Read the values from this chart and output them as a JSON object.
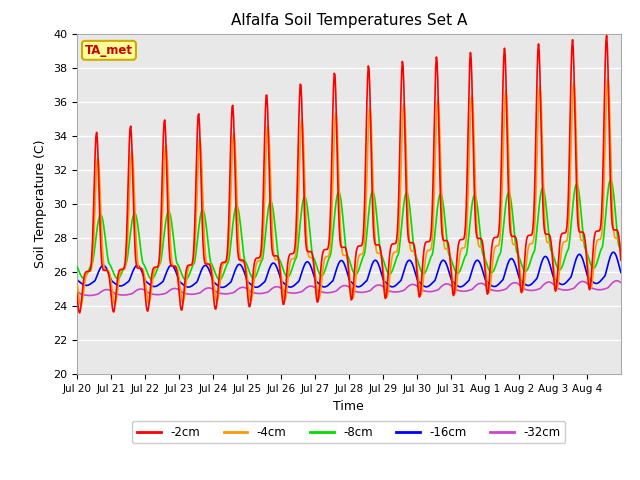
{
  "title": "Alfalfa Soil Temperatures Set A",
  "xlabel": "Time",
  "ylabel": "Soil Temperature (C)",
  "ylim": [
    20,
    40
  ],
  "bg_color": "#e8e8e8",
  "series": {
    "-2cm": {
      "color": "#ff0000",
      "linewidth": 1.2
    },
    "-4cm": {
      "color": "#ff9900",
      "linewidth": 1.2
    },
    "-8cm": {
      "color": "#00dd00",
      "linewidth": 1.2
    },
    "-16cm": {
      "color": "#0000ff",
      "linewidth": 1.2
    },
    "-32cm": {
      "color": "#cc44cc",
      "linewidth": 1.2
    }
  },
  "xtick_labels": [
    "Jul 20",
    "Jul 21",
    "Jul 22",
    "Jul 23",
    "Jul 24",
    "Jul 25",
    "Jul 26",
    "Jul 27",
    "Jul 28",
    "Jul 29",
    "Jul 30",
    "Jul 31",
    "Aug 1",
    "Aug 2",
    "Aug 3",
    "Aug 4"
  ],
  "ta_met_label": "TA_met",
  "ta_met_color": "#cc0000",
  "ta_met_bg": "#ffff99",
  "ta_met_border": "#ccaa00",
  "yticks": [
    20,
    22,
    24,
    26,
    28,
    30,
    32,
    34,
    36,
    38,
    40
  ],
  "legend_labels": [
    "-2cm",
    "-4cm",
    "-8cm",
    "-16cm",
    "-32cm"
  ]
}
